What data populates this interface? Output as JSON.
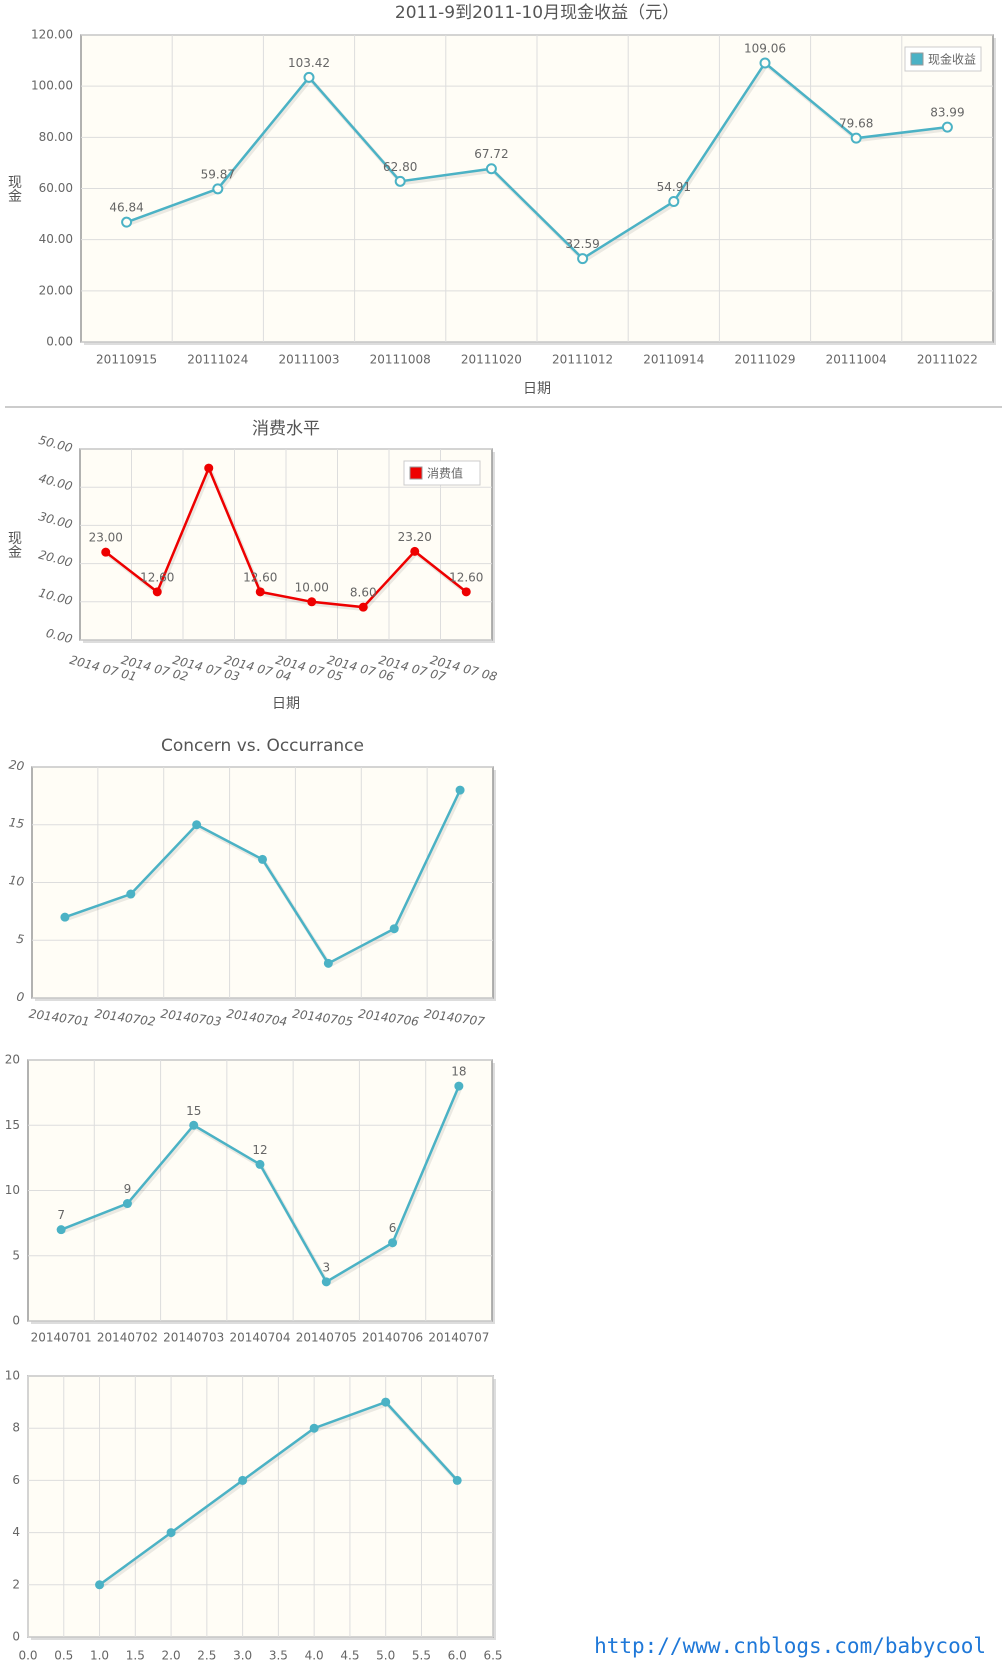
{
  "chart_data": [
    {
      "type": "line",
      "title": "2011-9到2011-10月现金收益（元）",
      "x_label": "日期",
      "y_label": "现金",
      "categories": [
        "20110915",
        "20111024",
        "20111003",
        "20111008",
        "20111020",
        "20111012",
        "20110914",
        "20111029",
        "20111004",
        "20111022"
      ],
      "series": [
        {
          "name": "现金收益",
          "color": "#4bb2c5",
          "values": [
            46.84,
            59.87,
            103.42,
            62.8,
            67.72,
            32.59,
            54.91,
            109.06,
            79.68,
            83.99
          ],
          "value_labels": [
            "46.84",
            "59.87",
            "103.42",
            "62.80",
            "67.72",
            "32.59",
            "54.91",
            "109.06",
            "79.68",
            "83.99"
          ]
        }
      ],
      "ylim": [
        0,
        120
      ],
      "yticks": [
        {
          "value": 0,
          "label": "0.00"
        },
        {
          "value": 20,
          "label": "20.00"
        },
        {
          "value": 40,
          "label": "40.00"
        },
        {
          "value": 60,
          "label": "60.00"
        },
        {
          "value": 80,
          "label": "80.00"
        },
        {
          "value": 100,
          "label": "100.00"
        },
        {
          "value": 120,
          "label": "120.00"
        }
      ],
      "grid": true,
      "legend": "ne",
      "marker": "open"
    },
    {
      "type": "line",
      "title": "消费水平",
      "x_label": "日期",
      "y_label": "现金",
      "categories": [
        "2014 07 01",
        "2014 07 02",
        "2014 07 03",
        "2014 07 04",
        "2014 07 05",
        "2014 07 06",
        "2014 07 07",
        "2014 07 08"
      ],
      "series": [
        {
          "name": "消费值",
          "color": "#ee0000",
          "values": [
            23,
            12.6,
            45,
            12.6,
            10,
            8.6,
            23.2,
            12.6
          ],
          "value_labels": [
            "23.00",
            "12.60",
            null,
            "12.60",
            "10.00",
            "8.60",
            "23.20",
            "12.60"
          ]
        }
      ],
      "ylim": [
        0,
        50
      ],
      "yticks": [
        {
          "value": 0,
          "label": "0.00"
        },
        {
          "value": 10,
          "label": "10.00"
        },
        {
          "value": 20,
          "label": "20.00"
        },
        {
          "value": 30,
          "label": "30.00"
        },
        {
          "value": 40,
          "label": "40.00"
        },
        {
          "value": 50,
          "label": "50.00"
        }
      ],
      "grid": true,
      "legend": "ne",
      "marker": "filled",
      "tick_angle": 15
    },
    {
      "type": "line",
      "title": "Concern vs. Occurrance",
      "categories": [
        "20140701",
        "20140702",
        "20140703",
        "20140704",
        "20140705",
        "20140706",
        "20140707"
      ],
      "values": [
        7,
        9,
        15,
        12,
        3,
        6,
        18
      ],
      "color": "#4bb2c5",
      "ylim": [
        0,
        20
      ],
      "yticks": [
        0,
        5,
        10,
        15,
        20
      ],
      "grid": true,
      "marker": "filled",
      "tick_angle": 8
    },
    {
      "type": "line",
      "categories": [
        "20140701",
        "20140702",
        "20140703",
        "20140704",
        "20140705",
        "20140706",
        "20140707"
      ],
      "values": [
        7,
        9,
        15,
        12,
        3,
        6,
        18
      ],
      "color": "#4bb2c5",
      "ylim": [
        0,
        20
      ],
      "yticks": [
        0,
        5,
        10,
        15,
        20
      ],
      "grid": true,
      "marker": "filled",
      "point_labels": true
    },
    {
      "type": "line",
      "x": [
        1,
        2,
        3,
        4,
        5,
        6
      ],
      "values": [
        2,
        4,
        6,
        8,
        9,
        6
      ],
      "color": "#4bb2c5",
      "xlim": [
        0,
        6.5
      ],
      "xticks": [
        {
          "value": 0,
          "label": "0.0"
        },
        0.5,
        {
          "value": 1,
          "label": "1.0"
        },
        1.5,
        {
          "value": 2,
          "label": "2.0"
        },
        2.5,
        {
          "value": 3,
          "label": "3.0"
        },
        3.5,
        {
          "value": 4,
          "label": "4.0"
        },
        4.5,
        {
          "value": 5,
          "label": "5.0"
        },
        5.5,
        {
          "value": 6,
          "label": "6.0"
        },
        6.5
      ],
      "ylim": [
        0,
        10
      ],
      "yticks": [
        0,
        2,
        4,
        6,
        8,
        10
      ],
      "grid": true,
      "marker": "filled"
    }
  ],
  "footer": "http://www.cnblogs.com/babycool"
}
